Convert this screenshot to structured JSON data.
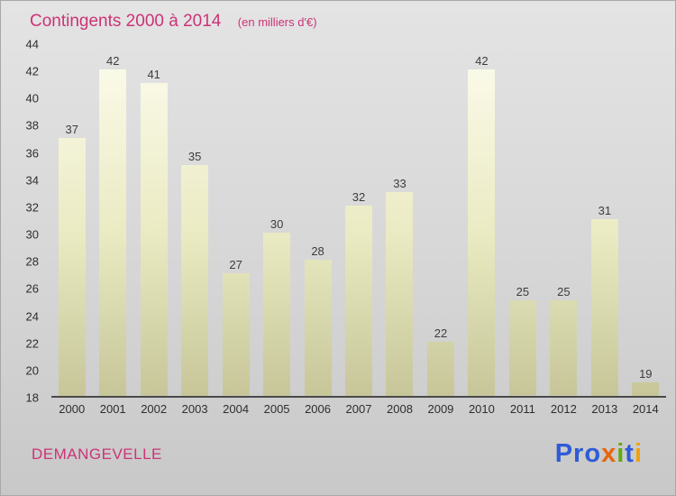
{
  "header": {
    "title": "Contingents 2000 à 2014",
    "subtitle": "(en milliers d'€)"
  },
  "chart_data": {
    "type": "bar",
    "title": "Contingents 2000 à 2014",
    "subtitle": "(en milliers d'€)",
    "categories": [
      "2000",
      "2001",
      "2002",
      "2003",
      "2004",
      "2005",
      "2006",
      "2007",
      "2008",
      "2009",
      "2010",
      "2011",
      "2012",
      "2013",
      "2014"
    ],
    "values": [
      37,
      42,
      41,
      35,
      27,
      30,
      28,
      32,
      33,
      22,
      42,
      25,
      25,
      31,
      19
    ],
    "xlabel": "",
    "ylabel": "",
    "ylim": [
      18,
      44
    ],
    "ytick_step": 2,
    "grid": false,
    "legend": null,
    "value_labels": true,
    "bar_gradient_top": "#fcfcee",
    "bar_gradient_mid": "#eaeac2",
    "bar_gradient_bottom": "#c6c699"
  },
  "footer": {
    "location": "DEMANGEVELLE",
    "logo_text": "Proxiti",
    "logo_letters": [
      {
        "ch": "P",
        "color": "#2e5bd7"
      },
      {
        "ch": "r",
        "color": "#2e5bd7"
      },
      {
        "ch": "o",
        "color": "#2e5bd7"
      },
      {
        "ch": "x",
        "color": "#e8650d"
      },
      {
        "ch": "i",
        "color": "#63a80f"
      },
      {
        "ch": "t",
        "color": "#2e5bd7"
      },
      {
        "ch": "i",
        "color": "#f0a20b"
      }
    ]
  },
  "colors": {
    "accent_pink": "#cc3377",
    "axis_text": "#2e2e2e",
    "value_text": "#3c3c3c",
    "baseline": "#4a4a4a",
    "background_top": "#e4e4e4",
    "background_bottom": "#c8c8c8"
  }
}
